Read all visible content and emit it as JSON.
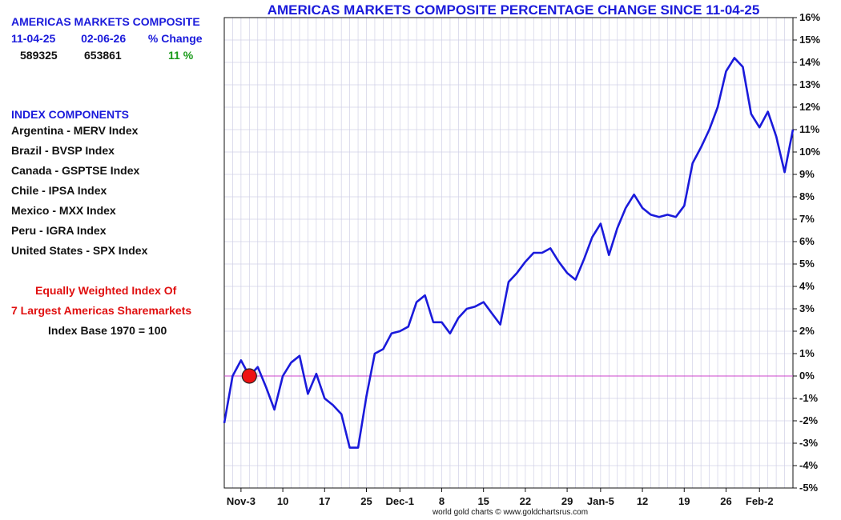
{
  "summary": {
    "heading": "AMERICAS MARKETS COMPOSITE",
    "col_headers": [
      "11-04-25",
      "02-06-26",
      "% Change"
    ],
    "values": [
      "589325",
      "653861",
      "11 %"
    ]
  },
  "components": {
    "heading": "INDEX COMPONENTS",
    "items": [
      "Argentina - MERV Index",
      "Brazil - BVSP Index",
      "Canada - GSPTSE Index",
      "Chile - IPSA Index",
      "Mexico - MXX Index",
      "Peru - IGRA Index",
      "United States - SPX Index"
    ]
  },
  "notes": {
    "line1": "Equally Weighted Index Of",
    "line2": "7 Largest Americas Sharemarkets",
    "line3": "Index Base 1970 = 100"
  },
  "credit": "world gold charts © www.goldchartsrus.com",
  "colors": {
    "line": "#1a1adb",
    "zero_line": "#cc44cc",
    "marker": "#ee1111",
    "grid": "#d0d0e6"
  },
  "chart_data": {
    "type": "line",
    "title": "AMERICAS MARKETS COMPOSITE PERCENTAGE CHANGE SINCE 11-04-25",
    "xlabel": "",
    "ylabel": "",
    "ylim": [
      -5,
      16
    ],
    "y_ticks": [
      -5,
      -4,
      -3,
      -2,
      -1,
      0,
      1,
      2,
      3,
      4,
      5,
      6,
      7,
      8,
      9,
      10,
      11,
      12,
      13,
      14,
      15,
      16
    ],
    "y_tick_labels": [
      "-5%",
      "-4%",
      "-3%",
      "-2%",
      "-1%",
      "0%",
      "1%",
      "2%",
      "3%",
      "4%",
      "5%",
      "6%",
      "7%",
      "8%",
      "9%",
      "10%",
      "11%",
      "12%",
      "13%",
      "14%",
      "15%",
      "16%"
    ],
    "x_tick_labels": [
      "Nov-3",
      "10",
      "17",
      "25",
      "Dec-1",
      "8",
      "15",
      "22",
      "29",
      "Jan-5",
      "12",
      "19",
      "26",
      "Feb-2"
    ],
    "x_tick_index": [
      2,
      7,
      12,
      17,
      21,
      26,
      31,
      36,
      41,
      45,
      50,
      55,
      60,
      64
    ],
    "x_tick_dates": [
      "2025-11-03",
      "2025-11-10",
      "2025-11-17",
      "2025-11-25",
      "2025-12-01",
      "2025-12-08",
      "2025-12-15",
      "2025-12-22",
      "2025-12-29",
      "2026-01-05",
      "2026-01-12",
      "2026-01-19",
      "2026-01-26",
      "2026-02-02"
    ],
    "grid": true,
    "legend": "none",
    "marker_index": 3,
    "marker_value": 0,
    "reference_line": 0,
    "series": [
      {
        "values": [
          -2.1,
          0,
          0.7,
          0,
          0.4,
          -0.5,
          -1.5,
          0,
          0.6,
          0.9,
          -0.8,
          0.1,
          -1.0,
          -1.3,
          -1.7,
          -3.2,
          -3.2,
          -0.9,
          1.0,
          1.2,
          1.9,
          2.0,
          2.2,
          3.3,
          3.6,
          2.4,
          2.4,
          1.9,
          2.6,
          3.0,
          3.1,
          3.3,
          2.8,
          2.3,
          4.2,
          4.6,
          5.1,
          5.5,
          5.5,
          5.7,
          5.1,
          4.6,
          4.3,
          5.2,
          6.2,
          6.8,
          5.4,
          6.6,
          7.5,
          8.1,
          7.5,
          7.2,
          7.1,
          7.2,
          7.1,
          7.6,
          9.5,
          10.2,
          11.0,
          12.0,
          13.6,
          14.2,
          13.8,
          11.7,
          11.1,
          11.8,
          10.7,
          9.1,
          11.0
        ]
      }
    ]
  }
}
